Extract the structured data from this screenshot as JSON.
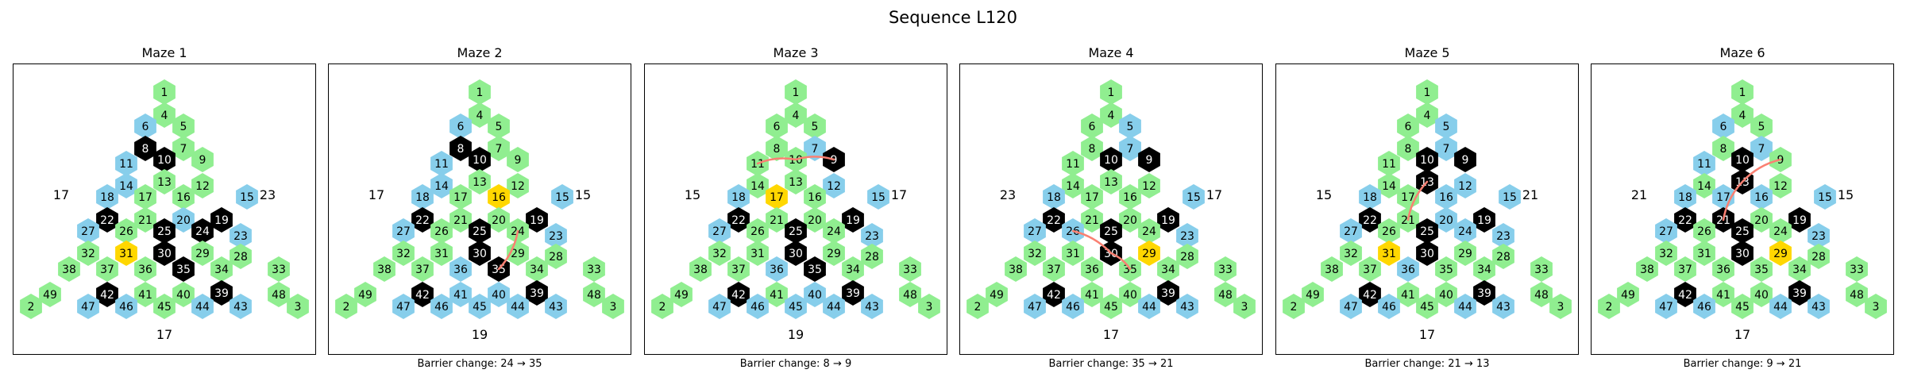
{
  "figure_title": "Sequence L120",
  "colors": {
    "open": "#90EE90",
    "special": "#87CEEB",
    "wall": "#000000",
    "current": "#FFD700",
    "path": "#FA8072"
  },
  "grid": {
    "rows": [
      [
        1
      ],
      [
        4,
        6,
        5
      ],
      [
        8,
        7,
        10,
        9
      ],
      [
        11,
        13,
        14,
        12,
        16
      ],
      [
        17,
        15,
        18,
        19,
        21,
        20,
        22,
        23
      ],
      [
        27,
        25,
        26,
        24,
        28
      ],
      [
        32,
        31,
        30,
        29,
        34,
        33
      ],
      [
        38,
        37,
        36,
        35,
        39
      ],
      [
        42,
        41,
        40,
        43,
        48
      ],
      [
        49,
        46,
        45,
        44,
        47
      ],
      [
        2,
        3
      ]
    ]
  },
  "mazes": [
    {
      "title": "Maze 1",
      "caption": "",
      "labels": {
        "left": "17",
        "right": "23",
        "bottom": "17"
      },
      "cells": {
        "1": "o",
        "4": "o",
        "5": "o",
        "6": "s",
        "7": "o",
        "8": "w",
        "9": "o",
        "10": "w",
        "11": "s",
        "12": "o",
        "13": "o",
        "14": "s",
        "15": "s",
        "16": "o",
        "17": "o",
        "18": "s",
        "19": "w",
        "20": "s",
        "21": "o",
        "22": "w",
        "23": "s",
        "24": "w",
        "25": "w",
        "26": "o",
        "27": "s",
        "28": "o",
        "29": "o",
        "30": "w",
        "31": "c",
        "32": "o",
        "33": "o",
        "34": "o",
        "35": "w",
        "36": "o",
        "37": "o",
        "38": "o",
        "39": "w",
        "40": "o",
        "41": "o",
        "42": "w",
        "43": "s",
        "44": "s",
        "45": "o",
        "46": "s",
        "47": "s",
        "48": "o",
        "49": "o",
        "2": "o",
        "3": "o"
      },
      "path": []
    },
    {
      "title": "Maze 2",
      "caption": "Barrier change: 24 → 35",
      "labels": {
        "left": "17",
        "right": "15",
        "bottom": "19"
      },
      "cells": {
        "1": "o",
        "4": "o",
        "5": "o",
        "6": "s",
        "7": "o",
        "8": "w",
        "9": "o",
        "10": "w",
        "11": "s",
        "12": "o",
        "13": "o",
        "14": "s",
        "15": "s",
        "16": "c",
        "17": "o",
        "18": "s",
        "19": "w",
        "20": "o",
        "21": "o",
        "22": "w",
        "23": "s",
        "24": "o",
        "25": "w",
        "26": "o",
        "27": "s",
        "28": "o",
        "29": "o",
        "30": "w",
        "31": "o",
        "32": "o",
        "33": "o",
        "34": "o",
        "35": "w",
        "36": "s",
        "37": "o",
        "38": "o",
        "39": "w",
        "40": "s",
        "41": "s",
        "42": "w",
        "43": "s",
        "44": "s",
        "45": "s",
        "46": "s",
        "47": "s",
        "48": "o",
        "49": "o",
        "2": "o",
        "3": "o"
      },
      "path": [
        24,
        35
      ]
    },
    {
      "title": "Maze 3",
      "caption": "Barrier change: 8 → 9",
      "labels": {
        "left": "15",
        "right": "17",
        "bottom": "19"
      },
      "cells": {
        "1": "o",
        "4": "o",
        "5": "o",
        "6": "o",
        "7": "s",
        "8": "o",
        "9": "w",
        "10": "o",
        "11": "o",
        "12": "s",
        "13": "o",
        "14": "o",
        "15": "s",
        "16": "o",
        "17": "c",
        "18": "s",
        "19": "w",
        "20": "o",
        "21": "o",
        "22": "w",
        "23": "s",
        "24": "o",
        "25": "w",
        "26": "o",
        "27": "s",
        "28": "o",
        "29": "o",
        "30": "w",
        "31": "o",
        "32": "o",
        "33": "o",
        "34": "o",
        "35": "w",
        "36": "s",
        "37": "o",
        "38": "o",
        "39": "w",
        "40": "s",
        "41": "o",
        "42": "w",
        "43": "s",
        "44": "s",
        "45": "s",
        "46": "s",
        "47": "s",
        "48": "o",
        "49": "o",
        "2": "o",
        "3": "o"
      },
      "path": [
        11,
        10,
        9
      ]
    },
    {
      "title": "Maze 4",
      "caption": "Barrier change: 35 → 21",
      "labels": {
        "left": "23",
        "right": "17",
        "bottom": "17"
      },
      "cells": {
        "1": "o",
        "4": "o",
        "5": "s",
        "6": "o",
        "7": "s",
        "8": "o",
        "9": "w",
        "10": "w",
        "11": "o",
        "12": "o",
        "13": "o",
        "14": "o",
        "15": "s",
        "16": "o",
        "17": "o",
        "18": "s",
        "19": "w",
        "20": "o",
        "21": "o",
        "22": "w",
        "23": "s",
        "24": "o",
        "25": "w",
        "26": "s",
        "27": "s",
        "28": "o",
        "29": "c",
        "30": "w",
        "31": "o",
        "32": "o",
        "33": "o",
        "34": "o",
        "35": "o",
        "36": "o",
        "37": "o",
        "38": "o",
        "39": "w",
        "40": "o",
        "41": "o",
        "42": "w",
        "43": "s",
        "44": "s",
        "45": "o",
        "46": "s",
        "47": "s",
        "48": "o",
        "49": "o",
        "2": "o",
        "3": "o"
      },
      "path": [
        26,
        30,
        35
      ]
    },
    {
      "title": "Maze 5",
      "caption": "Barrier change: 21 → 13",
      "labels": {
        "left": "15",
        "right": "21",
        "bottom": "17"
      },
      "cells": {
        "1": "o",
        "4": "o",
        "5": "s",
        "6": "o",
        "7": "s",
        "8": "o",
        "9": "w",
        "10": "w",
        "11": "o",
        "12": "s",
        "13": "w",
        "14": "o",
        "15": "s",
        "16": "s",
        "17": "o",
        "18": "s",
        "19": "w",
        "20": "s",
        "21": "o",
        "22": "w",
        "23": "s",
        "24": "s",
        "25": "w",
        "26": "o",
        "27": "s",
        "28": "o",
        "29": "o",
        "30": "w",
        "31": "c",
        "32": "o",
        "33": "o",
        "34": "o",
        "35": "o",
        "36": "s",
        "37": "o",
        "38": "o",
        "39": "w",
        "40": "o",
        "41": "o",
        "42": "w",
        "43": "s",
        "44": "s",
        "45": "o",
        "46": "s",
        "47": "s",
        "48": "o",
        "49": "o",
        "2": "o",
        "3": "o"
      },
      "path": [
        21,
        13
      ]
    },
    {
      "title": "Maze 6",
      "caption": "Barrier change: 9 → 21",
      "labels": {
        "left": "21",
        "right": "15",
        "bottom": "17"
      },
      "cells": {
        "1": "o",
        "4": "o",
        "5": "o",
        "6": "s",
        "7": "s",
        "8": "o",
        "9": "o",
        "10": "w",
        "11": "s",
        "12": "o",
        "13": "w",
        "14": "o",
        "15": "s",
        "16": "s",
        "17": "s",
        "18": "s",
        "19": "w",
        "20": "o",
        "21": "w",
        "22": "w",
        "23": "s",
        "24": "o",
        "25": "w",
        "26": "o",
        "27": "s",
        "28": "o",
        "29": "c",
        "30": "w",
        "31": "o",
        "32": "o",
        "33": "o",
        "34": "o",
        "35": "o",
        "36": "o",
        "37": "o",
        "38": "o",
        "39": "w",
        "40": "o",
        "41": "o",
        "42": "w",
        "43": "s",
        "44": "s",
        "45": "o",
        "46": "s",
        "47": "s",
        "48": "o",
        "49": "o",
        "2": "o",
        "3": "o"
      },
      "path": [
        21,
        13,
        9
      ]
    }
  ]
}
